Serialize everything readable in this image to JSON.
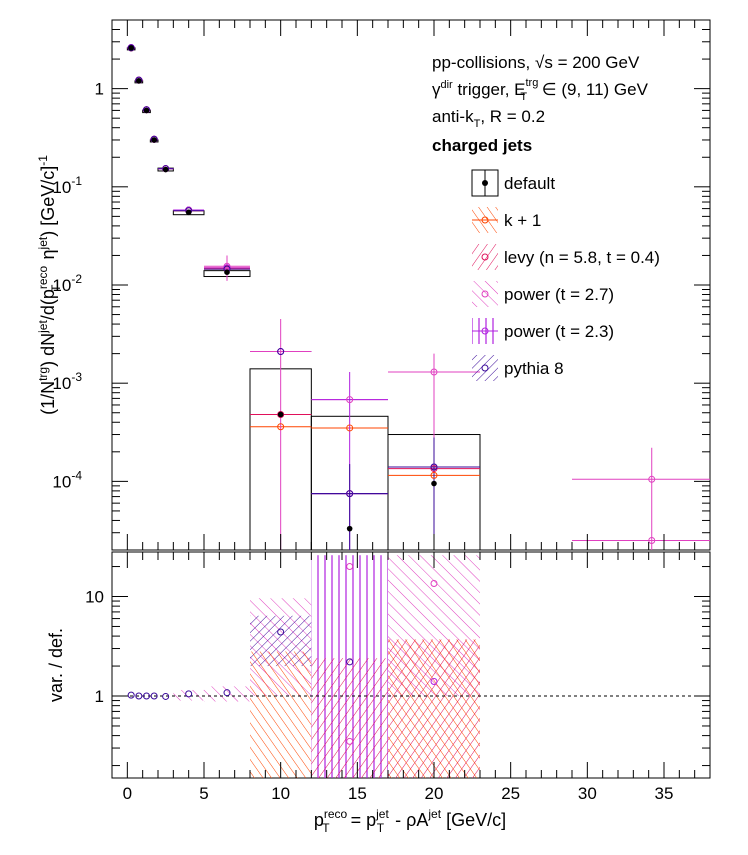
{
  "chart_data": [
    {
      "type": "scatter",
      "panel": "upper",
      "ylabel": "(1/N^trg) dN^jet/d(p_T^reco η^jet) [GeV/c]^-1",
      "ylabel_parts": [
        "(1/N",
        "trg",
        ") dN",
        "jet",
        "/d(p",
        "reco",
        "T",
        " η",
        "jet",
        ") [GeV/c]",
        "-1"
      ],
      "yscale": "log",
      "ylim": [
        2e-05,
        5
      ],
      "xlim": [
        -1,
        38
      ],
      "y_major_ticks": [
        0.0001,
        0.001,
        0.01,
        0.1,
        1
      ],
      "y_tick_labels": [
        {
          "base": "10",
          "exp": "-4"
        },
        {
          "base": "10",
          "exp": "-3"
        },
        {
          "base": "10",
          "exp": "-2"
        },
        {
          "base": "10",
          "exp": "-1"
        },
        {
          "base": "1",
          "exp": ""
        }
      ],
      "annotations": [
        {
          "key": "collisions",
          "parts": [
            "pp-collisions, ",
            "√s",
            " = 200 GeV"
          ]
        },
        {
          "key": "trigger",
          "parts": [
            "γ",
            "dir",
            " trigger, E",
            "trg",
            "T",
            " ∈ (9, 11) GeV"
          ]
        },
        {
          "key": "algo",
          "parts": [
            "anti-k",
            "T",
            ", R = 0.2"
          ]
        },
        {
          "key": "jets",
          "text": "charged jets"
        }
      ],
      "legend": {
        "placement": "top-right",
        "entries": [
          {
            "label": "default",
            "color": "#000000",
            "style": "box-filled-marker"
          },
          {
            "label": "k + 1",
            "color": "#ff4500",
            "style": "line-open-circle"
          },
          {
            "label": "levy (n = 5.8, t = 0.4)",
            "color": "#e0105a",
            "style": "hatch-diag"
          },
          {
            "label": "power (t = 2.7)",
            "color": "#e040c0",
            "style": "hatch-antidiag"
          },
          {
            "label": "power (t = 2.3)",
            "color": "#b020e0",
            "style": "hatch-vertical"
          },
          {
            "label": "pythia 8",
            "color": "#3a0a9a",
            "style": "hatch-dense"
          }
        ]
      },
      "series": [
        {
          "name": "default",
          "color": "#000000",
          "bins": [
            [
              0,
              0.5
            ],
            [
              0.5,
              1
            ],
            [
              1,
              1.5
            ],
            [
              1.5,
              2
            ],
            [
              2,
              3
            ],
            [
              3,
              5
            ],
            [
              5,
              8
            ],
            [
              8,
              12
            ],
            [
              12,
              17
            ],
            [
              17,
              23
            ]
          ],
          "values": [
            2.6,
            1.2,
            0.6,
            0.3,
            0.15,
            0.055,
            0.0135,
            0.00048,
            3.3e-05,
            9.5e-05
          ],
          "box": [
            2.6,
            1.2,
            0.6,
            0.3,
            0.155,
            0.057,
            0.014,
            0.0014,
            0.00046,
            0.0003
          ],
          "box_low": [
            2.5,
            1.15,
            0.57,
            0.29,
            0.145,
            0.052,
            0.0122,
            1e-05,
            1e-05,
            1e-05
          ]
        },
        {
          "name": "k + 1",
          "color": "#ff4500",
          "x": [
            0.25,
            0.75,
            1.25,
            1.75,
            2.5,
            4,
            6.5,
            10,
            14.5,
            20
          ],
          "values": [
            2.6,
            1.22,
            0.61,
            0.305,
            0.153,
            0.057,
            0.0145,
            0.00036,
            0.00035,
            0.000115
          ]
        },
        {
          "name": "levy (n = 5.8, t = 0.4)",
          "color": "#e0105a",
          "x": [
            0.25,
            0.75,
            1.25,
            1.75,
            2.5,
            4,
            6.5,
            10,
            14.5,
            20
          ],
          "values": [
            2.6,
            1.22,
            0.61,
            0.305,
            0.153,
            0.058,
            0.0148,
            0.00048,
            7.5e-05,
            0.000135
          ]
        },
        {
          "name": "power (t = 2.7)",
          "color": "#e040c0",
          "x": [
            0.25,
            0.75,
            1.25,
            1.75,
            2.5,
            4,
            6.5,
            10,
            14.5,
            20,
            34.2,
            34.2
          ],
          "values": [
            2.62,
            1.22,
            0.61,
            0.305,
            0.153,
            0.058,
            0.0155,
            0.0021,
            0.00068,
            0.0013,
            0.000105,
            2.5e-05
          ]
        },
        {
          "name": "power (t = 2.3)",
          "color": "#b020e0",
          "x": [
            0.25,
            0.75,
            1.25,
            1.75,
            2.5,
            4,
            6.5,
            10,
            14.5,
            20
          ],
          "values": [
            2.62,
            1.22,
            0.61,
            0.305,
            0.153,
            0.058,
            0.015,
            0.0021,
            7.5e-05,
            0.00014
          ]
        },
        {
          "name": "pythia 8",
          "color": "#3a0a9a",
          "x": [
            0.25,
            0.75,
            1.25,
            1.75,
            2.5,
            4,
            6.5,
            10,
            14.5,
            20
          ],
          "values": [
            2.6,
            1.22,
            0.61,
            0.305,
            0.153,
            0.057,
            0.0145,
            0.0021,
            7.5e-05,
            0.00014
          ]
        }
      ]
    },
    {
      "type": "scatter",
      "panel": "lower",
      "ylabel": "var. / def.",
      "yscale": "log",
      "ylim": [
        0.15,
        28
      ],
      "xlim": [
        -1,
        38
      ],
      "y_tick_labels": [
        {
          "value": 1,
          "text": "1"
        },
        {
          "value": 10,
          "text": "10"
        }
      ],
      "x_tick_labels": [
        "0",
        "5",
        "10",
        "15",
        "20",
        "25",
        "30",
        "35"
      ],
      "x_ticks": [
        0,
        5,
        10,
        15,
        20,
        25,
        30,
        35
      ],
      "xlabel": "p_T^reco = p_T^jet - ρA^jet [GeV/c]",
      "xlabel_parts": [
        "p",
        "reco",
        "T",
        " = p",
        "jet",
        "T",
        " - ρA",
        "jet",
        " [GeV/c]"
      ],
      "reference_line": 1,
      "ratio_points": [
        {
          "x": 0.25,
          "y": 1.02,
          "color": "#3a0a9a"
        },
        {
          "x": 0.75,
          "y": 1.0,
          "color": "#3a0a9a"
        },
        {
          "x": 1.25,
          "y": 1.0,
          "color": "#3a0a9a"
        },
        {
          "x": 1.75,
          "y": 1.0,
          "color": "#3a0a9a"
        },
        {
          "x": 2.5,
          "y": 0.99,
          "color": "#3a0a9a"
        },
        {
          "x": 4,
          "y": 1.05,
          "color": "#3a0a9a"
        },
        {
          "x": 6.5,
          "y": 1.08,
          "color": "#3a0a9a"
        },
        {
          "x": 10,
          "y": 4.4,
          "color": "#3a0a9a"
        },
        {
          "x": 14.5,
          "y": 2.2,
          "color": "#3a0a9a"
        },
        {
          "x": 14.5,
          "y": 20,
          "color": "#e040c0"
        },
        {
          "x": 14.5,
          "y": 0.35,
          "color": "#e040c0"
        },
        {
          "x": 20,
          "y": 1.4,
          "color": "#b020e0"
        },
        {
          "x": 20,
          "y": 13.5,
          "color": "#e040c0"
        }
      ]
    }
  ]
}
